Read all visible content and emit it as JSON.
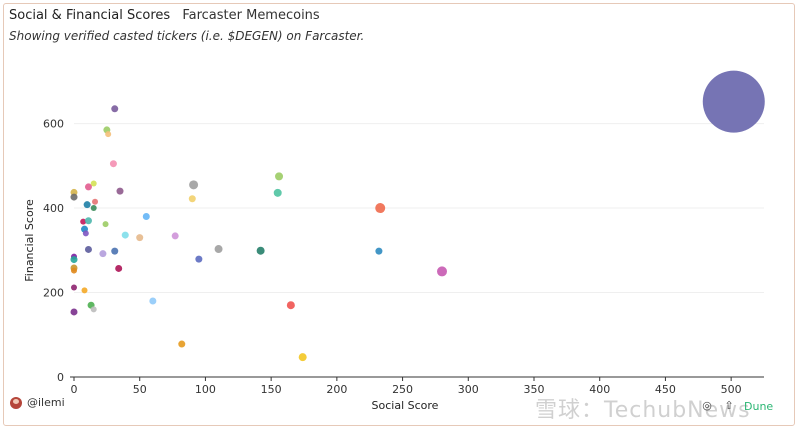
{
  "header": {
    "title": "Social & Financial Scores",
    "subtitle_tag": "Farcaster Memecoins",
    "description": "Showing verified casted tickers (i.e. $DEGEN) on Farcaster."
  },
  "footer": {
    "author": "@ilemi",
    "watermark": "雪球：TechubNews",
    "brand": "Dune"
  },
  "chart_data": {
    "type": "scatter",
    "xlabel": "Social Score",
    "ylabel": "Financial Score",
    "xlim": [
      0,
      525
    ],
    "ylim": [
      0,
      760
    ],
    "x_ticks": [
      "0",
      "50",
      "100",
      "150",
      "200",
      "250",
      "300",
      "350",
      "400",
      "450",
      "500"
    ],
    "y_ticks": [
      "0",
      "200",
      "400",
      "600"
    ],
    "grid": true,
    "points": [
      {
        "x": 31,
        "y": 635,
        "color": "#7a5c9c",
        "r": 3.5
      },
      {
        "x": 25,
        "y": 585,
        "color": "#9ccc65",
        "r": 3.5
      },
      {
        "x": 26,
        "y": 575,
        "color": "#f4c07a",
        "r": 3
      },
      {
        "x": 30,
        "y": 505,
        "color": "#f48fb1",
        "r": 3.5
      },
      {
        "x": 15,
        "y": 458,
        "color": "#d4e157",
        "r": 3
      },
      {
        "x": 11,
        "y": 450,
        "color": "#e25c8f",
        "r": 3.5
      },
      {
        "x": 0,
        "y": 437,
        "color": "#d4b44a",
        "r": 3.5
      },
      {
        "x": 35,
        "y": 440,
        "color": "#8e5a8c",
        "r": 3.5
      },
      {
        "x": 0,
        "y": 426,
        "color": "#6b6b6b",
        "r": 3.5
      },
      {
        "x": 16,
        "y": 415,
        "color": "#e57373",
        "r": 3
      },
      {
        "x": 10,
        "y": 408,
        "color": "#1e7fa6",
        "r": 3.5
      },
      {
        "x": 15,
        "y": 400,
        "color": "#3c8c5a",
        "r": 3
      },
      {
        "x": 91,
        "y": 455,
        "color": "#9e9e9e",
        "r": 4.5
      },
      {
        "x": 90,
        "y": 422,
        "color": "#f2d06b",
        "r": 3.5
      },
      {
        "x": 156,
        "y": 475,
        "color": "#9ccc65",
        "r": 4
      },
      {
        "x": 155,
        "y": 436,
        "color": "#4fc3a1",
        "r": 4
      },
      {
        "x": 233,
        "y": 400,
        "color": "#f06a4c",
        "r": 5
      },
      {
        "x": 55,
        "y": 380,
        "color": "#64b5f6",
        "r": 3.5
      },
      {
        "x": 7,
        "y": 368,
        "color": "#c2185b",
        "r": 3
      },
      {
        "x": 11,
        "y": 370,
        "color": "#4db6ac",
        "r": 3.5
      },
      {
        "x": 24,
        "y": 362,
        "color": "#9ccc65",
        "r": 3
      },
      {
        "x": 8,
        "y": 350,
        "color": "#1e88c5",
        "r": 3.5
      },
      {
        "x": 9,
        "y": 340,
        "color": "#7e57c2",
        "r": 3
      },
      {
        "x": 39,
        "y": 336,
        "color": "#80deea",
        "r": 3.5
      },
      {
        "x": 50,
        "y": 330,
        "color": "#e6b98c",
        "r": 3.5
      },
      {
        "x": 77,
        "y": 334,
        "color": "#ce93d8",
        "r": 3.5
      },
      {
        "x": 110,
        "y": 303,
        "color": "#9e9e9e",
        "r": 4
      },
      {
        "x": 142,
        "y": 299,
        "color": "#26806a",
        "r": 4
      },
      {
        "x": 232,
        "y": 298,
        "color": "#2e8bc0",
        "r": 3.5
      },
      {
        "x": 11,
        "y": 302,
        "color": "#5c5c9c",
        "r": 3.5
      },
      {
        "x": 22,
        "y": 292,
        "color": "#b39ddb",
        "r": 3.5
      },
      {
        "x": 31,
        "y": 298,
        "color": "#4a72b0",
        "r": 3.5
      },
      {
        "x": 0,
        "y": 285,
        "color": "#7b1fa2",
        "r": 3
      },
      {
        "x": 0,
        "y": 278,
        "color": "#26a69a",
        "r": 3.5
      },
      {
        "x": 95,
        "y": 279,
        "color": "#5c6bc0",
        "r": 3.5
      },
      {
        "x": 0,
        "y": 258,
        "color": "#c9962e",
        "r": 3.5
      },
      {
        "x": 0,
        "y": 252,
        "color": "#e08a1e",
        "r": 3
      },
      {
        "x": 34,
        "y": 257,
        "color": "#ad1457",
        "r": 3.5
      },
      {
        "x": 280,
        "y": 250,
        "color": "#c65ab1",
        "r": 5
      },
      {
        "x": 0,
        "y": 212,
        "color": "#8e2470",
        "r": 3
      },
      {
        "x": 8,
        "y": 205,
        "color": "#f4a826",
        "r": 3
      },
      {
        "x": 60,
        "y": 180,
        "color": "#90caf9",
        "r": 3.5
      },
      {
        "x": 13,
        "y": 170,
        "color": "#4caf50",
        "r": 3.5
      },
      {
        "x": 15,
        "y": 160,
        "color": "#bdbdbd",
        "r": 3
      },
      {
        "x": 0,
        "y": 154,
        "color": "#7a2f8c",
        "r": 3.5
      },
      {
        "x": 165,
        "y": 170,
        "color": "#ef5350",
        "r": 4
      },
      {
        "x": 82,
        "y": 78,
        "color": "#e59a1e",
        "r": 3.5
      },
      {
        "x": 174,
        "y": 47,
        "color": "#f3c623",
        "r": 4
      },
      {
        "x": 502,
        "y": 652,
        "color": "#6f6db0",
        "r": 31
      }
    ]
  }
}
